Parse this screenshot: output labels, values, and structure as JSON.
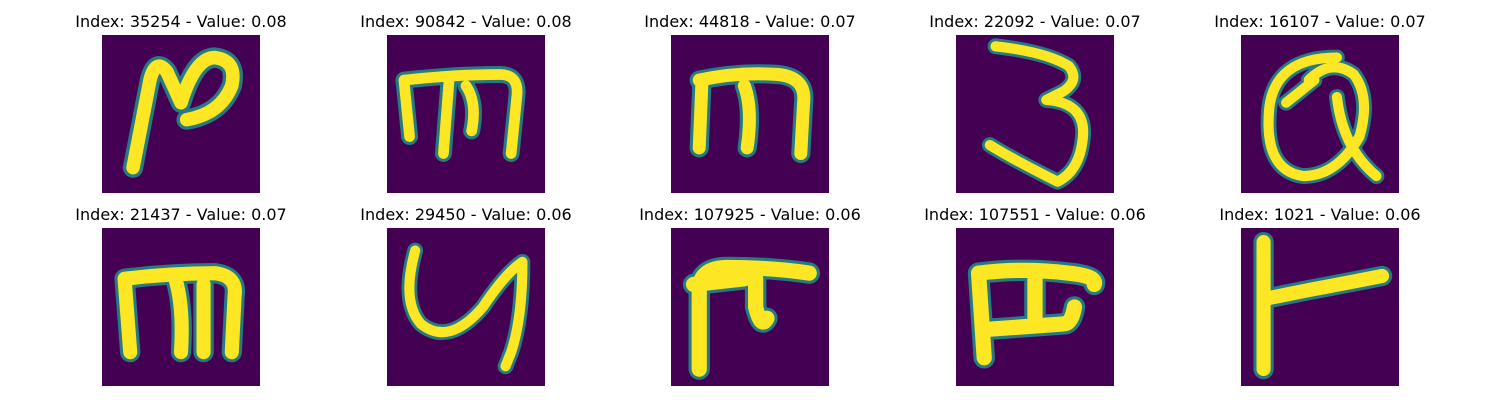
{
  "panels": [
    {
      "title": "Index: 35254 - Value: 0.08",
      "index": 35254,
      "value": 0.08,
      "glyph": "glyph-1-icon"
    },
    {
      "title": "Index: 90842 - Value: 0.08",
      "index": 90842,
      "value": 0.08,
      "glyph": "glyph-2-icon"
    },
    {
      "title": "Index: 44818 - Value: 0.07",
      "index": 44818,
      "value": 0.07,
      "glyph": "glyph-3-icon"
    },
    {
      "title": "Index: 22092 - Value: 0.07",
      "index": 22092,
      "value": 0.07,
      "glyph": "glyph-4-icon"
    },
    {
      "title": "Index: 16107 - Value: 0.07",
      "index": 16107,
      "value": 0.07,
      "glyph": "glyph-5-icon"
    },
    {
      "title": "Index: 21437 - Value: 0.07",
      "index": 21437,
      "value": 0.07,
      "glyph": "glyph-6-icon"
    },
    {
      "title": "Index: 29450 - Value: 0.06",
      "index": 29450,
      "value": 0.06,
      "glyph": "glyph-7-icon"
    },
    {
      "title": "Index: 107925 - Value: 0.06",
      "index": 107925,
      "value": 0.06,
      "glyph": "glyph-8-icon"
    },
    {
      "title": "Index: 107551 - Value: 0.06",
      "index": 107551,
      "value": 0.06,
      "glyph": "glyph-9-icon"
    },
    {
      "title": "Index: 1021 - Value: 0.06",
      "index": 1021,
      "value": 0.06,
      "glyph": "glyph-10-icon"
    }
  ],
  "colors": {
    "background": "#440154",
    "stroke": "#fde725",
    "edge": "#21918c"
  }
}
